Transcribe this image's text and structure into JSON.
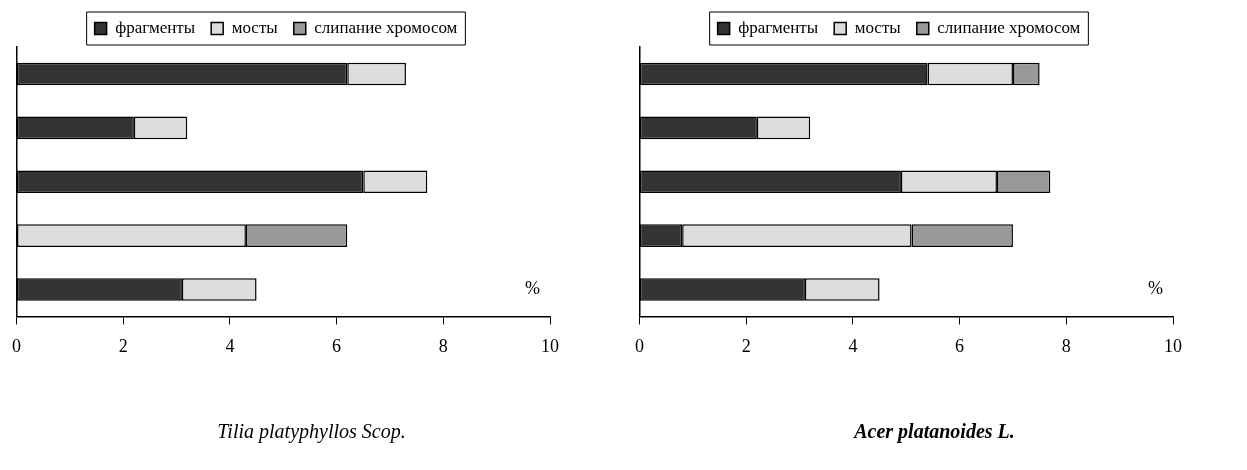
{
  "chart_data": [
    {
      "type": "bar",
      "orientation": "horizontal",
      "stacked": true,
      "title": "Tilia platyphyllos Scop.",
      "xlabel": "%",
      "categories": [
        null,
        null,
        null,
        null,
        null
      ],
      "series": [
        {
          "name": "фрагменты",
          "color": "#333333",
          "values": [
            6.2,
            2.2,
            6.5,
            0,
            3.1
          ]
        },
        {
          "name": "мосты",
          "color": "#dddddd",
          "values": [
            1.1,
            1.0,
            1.2,
            4.3,
            1.4
          ]
        },
        {
          "name": "слипание хромосом",
          "color": "#999999",
          "values": [
            0,
            0,
            0,
            1.9,
            0
          ]
        }
      ],
      "xlim": [
        0,
        10
      ],
      "xticks": [
        0,
        2,
        4,
        6,
        8,
        10
      ],
      "grid": false,
      "legend": "top",
      "tick_labels": "x"
    },
    {
      "type": "bar",
      "orientation": "horizontal",
      "stacked": true,
      "title": "Acer platanoides L.",
      "xlabel": "%",
      "categories": [
        null,
        null,
        null,
        null,
        null
      ],
      "series": [
        {
          "name": "фрагменты",
          "color": "#333333",
          "values": [
            5.4,
            2.2,
            4.9,
            0.8,
            3.1
          ]
        },
        {
          "name": "мосты",
          "color": "#dddddd",
          "values": [
            1.6,
            1.0,
            1.8,
            4.3,
            1.4
          ]
        },
        {
          "name": "слипание хромосом",
          "color": "#999999",
          "values": [
            0.5,
            0,
            1.0,
            1.9,
            0
          ]
        }
      ],
      "xlim": [
        0,
        10
      ],
      "xticks": [
        0,
        2,
        4,
        6,
        8,
        10
      ],
      "grid": false,
      "legend": "top",
      "tick_labels": "x"
    }
  ]
}
